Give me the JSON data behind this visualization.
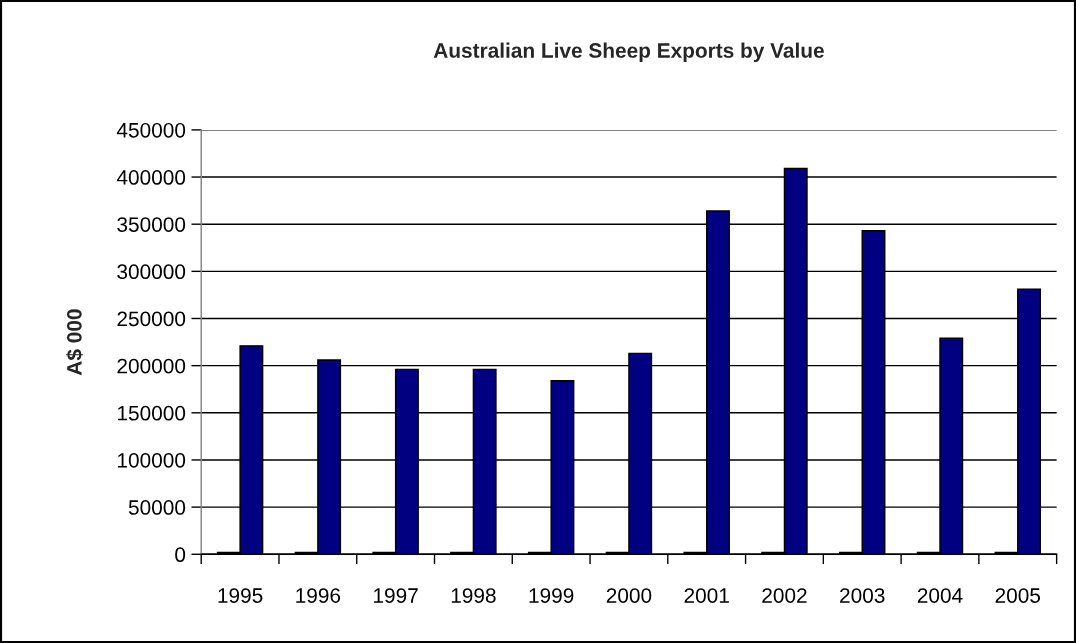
{
  "chart_data": {
    "type": "bar",
    "title": "Australian Live Sheep Exports by Value",
    "ylabel": "A$ 000",
    "categories": [
      "1995",
      "1996",
      "1997",
      "1998",
      "1999",
      "2000",
      "2001",
      "2002",
      "2003",
      "2004",
      "2005"
    ],
    "series": [
      {
        "color": "#000000",
        "values": [
          2000,
          2000,
          2000,
          2000,
          2000,
          2000,
          2000,
          2000,
          2000,
          2000,
          2000
        ]
      },
      {
        "color": "#000080",
        "values": [
          221000,
          206000,
          196000,
          196000,
          184000,
          213000,
          364000,
          409000,
          343000,
          229000,
          281000
        ]
      }
    ],
    "ylim": [
      0,
      450000
    ],
    "yticks": [
      0,
      50000,
      100000,
      150000,
      200000,
      250000,
      300000,
      350000,
      400000,
      450000
    ],
    "grid": "y"
  }
}
